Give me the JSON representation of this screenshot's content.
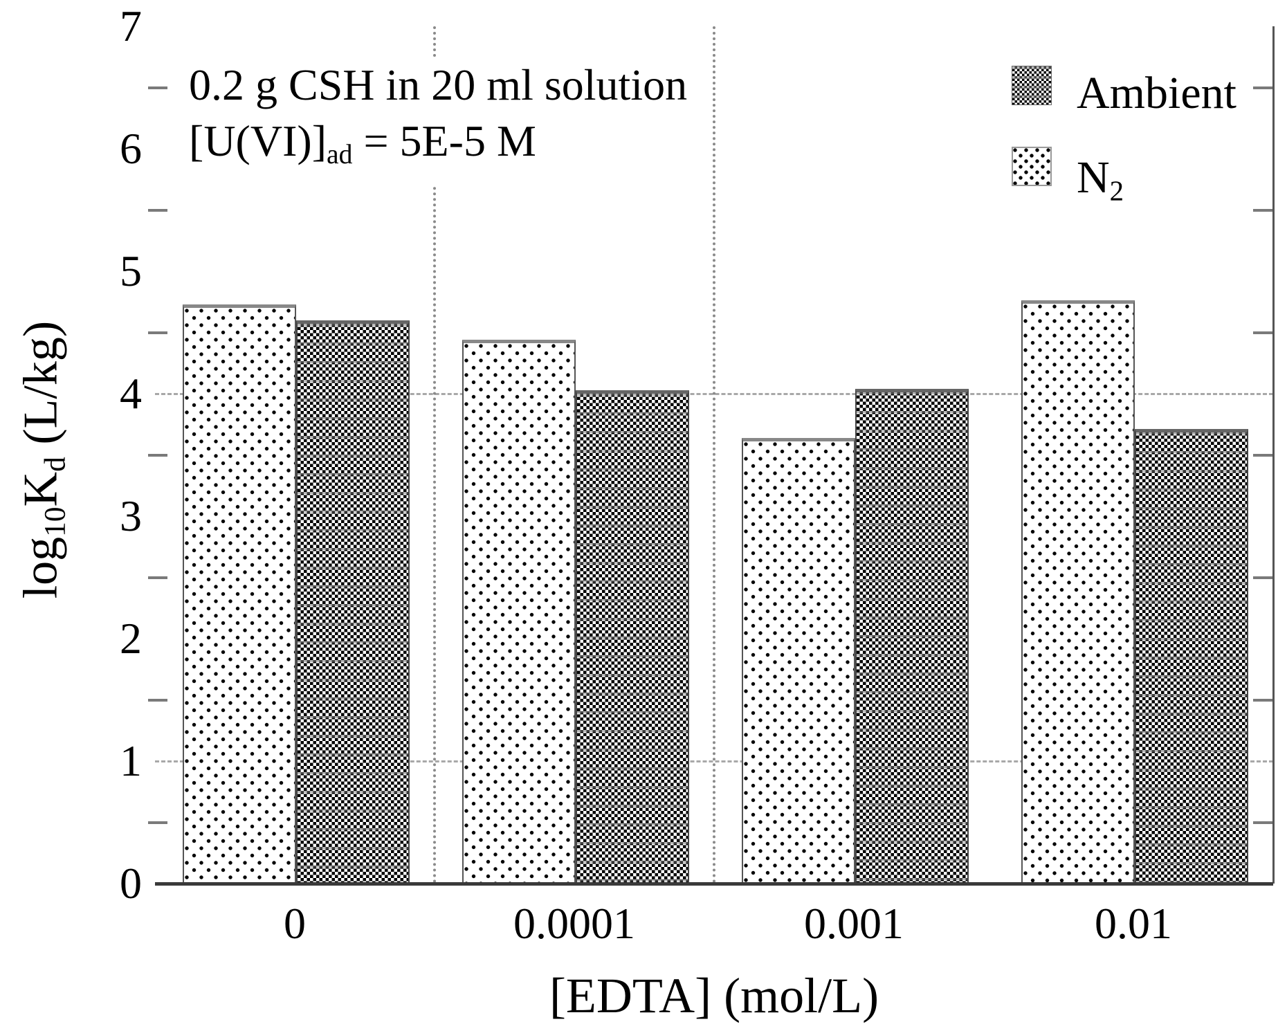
{
  "annotation": {
    "line1": "0.2 g CSH in 20 ml solution",
    "line2_segments": [
      {
        "text": "[U(VI)]"
      },
      {
        "text": "ad",
        "sub": true
      },
      {
        "text": " = 5E-5 M"
      }
    ]
  },
  "legend": {
    "items": [
      {
        "name": "Ambient",
        "pattern": "ambient",
        "label_segments": [
          {
            "text": "Ambient"
          }
        ]
      },
      {
        "name": "N2",
        "pattern": "n2",
        "label_segments": [
          {
            "text": "N"
          },
          {
            "text": "2",
            "sub": true
          }
        ]
      }
    ]
  },
  "y_axis": {
    "title_segments": [
      {
        "text": "log"
      },
      {
        "text": "10",
        "sub": true
      },
      {
        "text": "K"
      },
      {
        "text": "d",
        "sub": true
      },
      {
        "text": " (L/kg)"
      }
    ],
    "tick_labels": [
      "0",
      "1",
      "2",
      "3",
      "4",
      "5",
      "6",
      "7"
    ],
    "minor_tick_values": [
      0.5,
      1.5,
      2.5,
      3.5,
      4.5,
      5.5,
      6.5
    ],
    "gridline_values": [
      1,
      4
    ]
  },
  "x_axis": {
    "title": "[EDTA] (mol/L)",
    "categories": [
      "0",
      "0.0001",
      "0.001",
      "0.01"
    ],
    "separator_cell_indices": [
      1,
      2
    ]
  },
  "colors": {
    "text": "#000000",
    "pattern_ink": "#000000",
    "grid": "#a8a8a8",
    "separator": "#8a8a8a",
    "axis_line": "#3a3a3a"
  },
  "chart_data": {
    "type": "bar",
    "title": "",
    "xlabel": "[EDTA] (mol/L)",
    "ylabel": "log10Kd (L/kg)",
    "ylim": [
      0,
      7
    ],
    "grid": "dash-dot horizontal at y=1 and y=4; dotted vertical category separators",
    "legend_position": "upper right inside",
    "categories": [
      "0",
      "0.0001",
      "0.001",
      "0.01"
    ],
    "series": [
      {
        "name": "N2",
        "pattern": "n2",
        "values": [
          4.73,
          4.44,
          3.64,
          4.76
        ]
      },
      {
        "name": "Ambient",
        "pattern": "ambient",
        "values": [
          4.6,
          4.03,
          4.04,
          3.71
        ]
      }
    ],
    "annotation": "0.2 g CSH in 20 ml solution; [U(VI)]ad = 5E-5 M"
  }
}
